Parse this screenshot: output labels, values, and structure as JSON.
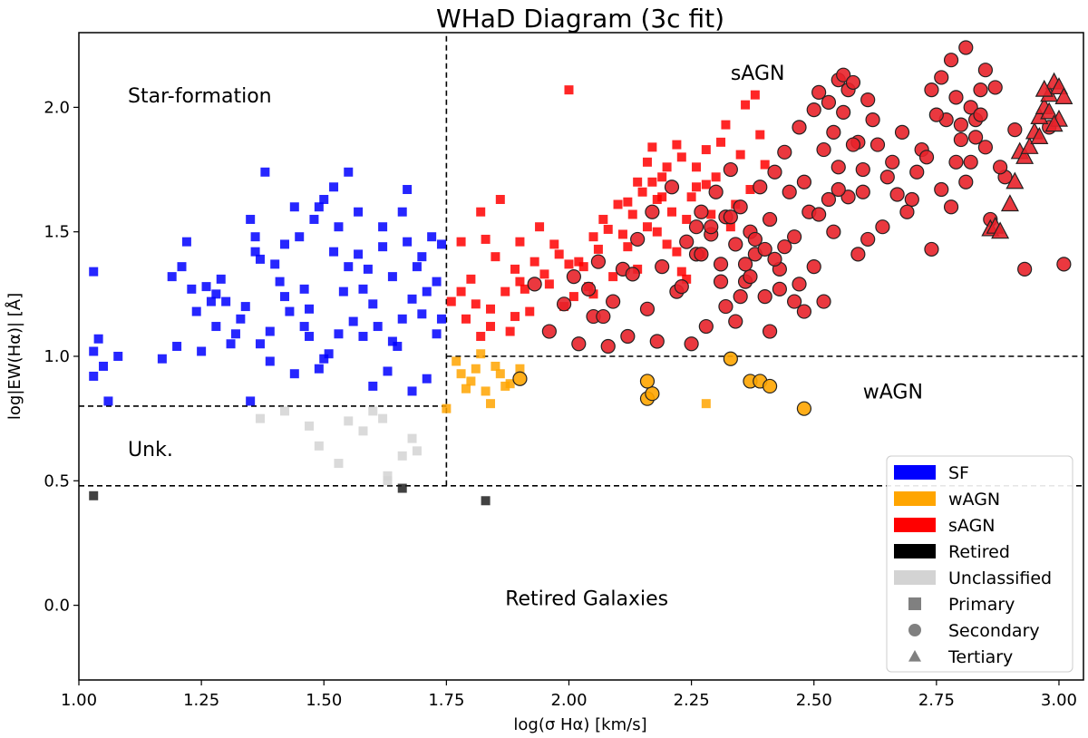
{
  "chart_data": {
    "type": "scatter",
    "title": "WHaD Diagram (3c fit)",
    "xlabel": "log(σ Hα) [km/s]",
    "ylabel": "log|EW(Hα)| [Å]",
    "xlim": [
      1.0,
      3.05
    ],
    "ylim": [
      -0.3,
      2.3
    ],
    "xticks": [
      "1.00",
      "1.25",
      "1.50",
      "1.75",
      "2.00",
      "2.25",
      "2.50",
      "2.75",
      "3.00"
    ],
    "yticks": [
      "0.0",
      "0.5",
      "1.0",
      "1.5",
      "2.0"
    ],
    "grid": false,
    "legend_position": "bottom-right",
    "dividers": [
      {
        "type": "vertical",
        "x": 1.75,
        "y_from": 0.48,
        "y_to": 2.3
      },
      {
        "type": "horizontal",
        "y": 1.0,
        "x_from": 1.75,
        "x_to": 3.05
      },
      {
        "type": "horizontal",
        "y": 0.8,
        "x_from": 1.0,
        "x_to": 1.75
      },
      {
        "type": "horizontal",
        "y": 0.48,
        "x_from": 1.0,
        "x_to": 3.05
      }
    ],
    "region_labels": [
      {
        "text": "Star-formation",
        "x": 1.1,
        "y": 2.02,
        "color": "#000000"
      },
      {
        "text": "sAGN",
        "x": 2.33,
        "y": 2.11,
        "color": "#000000"
      },
      {
        "text": "wAGN",
        "x": 2.6,
        "y": 0.83,
        "color": "#000000"
      },
      {
        "text": "Unk.",
        "x": 1.1,
        "y": 0.6,
        "color": "#000000"
      },
      {
        "text": "Retired Galaxies",
        "x": 1.87,
        "y": 0.0,
        "color": "#ff0000"
      }
    ],
    "legend": [
      {
        "label": "SF",
        "kind": "patch",
        "color": "#0000ff"
      },
      {
        "label": "wAGN",
        "kind": "patch",
        "color": "#ffa500"
      },
      {
        "label": "sAGN",
        "kind": "patch",
        "color": "#ff0000"
      },
      {
        "label": "Retired",
        "kind": "patch",
        "color": "#000000"
      },
      {
        "label": "Unclassified",
        "kind": "patch",
        "color": "#d3d3d3"
      },
      {
        "label": "Primary",
        "kind": "square",
        "color": "#808080"
      },
      {
        "label": "Secondary",
        "kind": "circle",
        "color": "#808080"
      },
      {
        "label": "Tertiary",
        "kind": "triangle",
        "color": "#808080"
      }
    ],
    "series": [
      {
        "class": "SF",
        "component": "Primary",
        "marker": "square",
        "color": "#0000ff",
        "x": [
          1.03,
          1.05,
          1.03,
          1.04,
          1.03,
          1.08,
          1.06,
          1.17,
          1.2,
          1.22,
          1.21,
          1.24,
          1.26,
          1.28,
          1.3,
          1.33,
          1.35,
          1.37,
          1.38,
          1.4,
          1.42,
          1.44,
          1.46,
          1.47,
          1.48,
          1.5,
          1.52,
          1.53,
          1.55,
          1.57,
          1.59,
          1.61,
          1.63,
          1.66,
          1.67,
          1.7,
          1.72,
          1.73,
          1.74,
          1.19,
          1.23,
          1.27,
          1.31,
          1.34,
          1.36,
          1.39,
          1.41,
          1.43,
          1.45,
          1.49,
          1.51,
          1.54,
          1.56,
          1.58,
          1.6,
          1.62,
          1.64,
          1.65,
          1.68,
          1.69,
          1.71,
          1.25,
          1.29,
          1.32,
          1.37,
          1.42,
          1.46,
          1.5,
          1.55,
          1.6,
          1.66,
          1.71,
          1.74,
          1.28,
          1.36,
          1.44,
          1.52,
          1.58,
          1.64,
          1.7,
          1.35,
          1.47,
          1.57,
          1.62,
          1.68,
          1.73,
          1.39,
          1.53,
          1.67,
          1.49
        ],
        "y": [
          0.92,
          0.96,
          1.02,
          1.07,
          1.34,
          1.0,
          0.82,
          0.99,
          1.04,
          1.46,
          1.36,
          1.18,
          1.28,
          1.12,
          1.22,
          1.15,
          0.82,
          1.05,
          1.74,
          1.37,
          1.45,
          1.6,
          1.27,
          1.08,
          1.55,
          1.63,
          1.42,
          1.52,
          1.74,
          1.58,
          1.35,
          1.12,
          0.94,
          1.58,
          1.67,
          1.4,
          1.48,
          1.09,
          1.15,
          1.32,
          1.27,
          1.22,
          1.05,
          1.2,
          1.42,
          1.1,
          1.3,
          1.18,
          1.48,
          0.95,
          1.01,
          1.26,
          1.14,
          1.08,
          1.21,
          1.44,
          1.32,
          1.04,
          1.23,
          1.36,
          0.91,
          1.02,
          1.31,
          1.09,
          1.39,
          1.24,
          1.12,
          0.99,
          1.36,
          0.88,
          1.15,
          1.26,
          1.45,
          1.25,
          1.48,
          0.93,
          1.68,
          1.27,
          1.06,
          1.17,
          1.55,
          1.19,
          1.41,
          1.52,
          0.86,
          1.3,
          0.98,
          1.09,
          1.46,
          1.6
        ]
      },
      {
        "class": "Unclassified",
        "component": "Primary",
        "marker": "square",
        "color": "#d3d3d3",
        "x": [
          1.37,
          1.42,
          1.49,
          1.53,
          1.55,
          1.58,
          1.62,
          1.63,
          1.66,
          1.68,
          1.69,
          1.6,
          1.47,
          1.63
        ],
        "y": [
          0.75,
          0.78,
          0.64,
          0.57,
          0.74,
          0.7,
          0.75,
          0.52,
          0.6,
          0.67,
          0.62,
          0.78,
          0.72,
          0.5
        ]
      },
      {
        "class": "Retired",
        "component": "Primary",
        "marker": "square",
        "color": "#202020",
        "x": [
          1.03,
          1.66,
          1.83
        ],
        "y": [
          0.44,
          0.47,
          0.42
        ]
      },
      {
        "class": "wAGN",
        "component": "Primary",
        "marker": "square",
        "color": "#ffa500",
        "x": [
          1.75,
          1.77,
          1.79,
          1.81,
          1.82,
          1.83,
          1.84,
          1.86,
          1.88,
          1.9,
          1.8,
          1.85,
          2.28,
          1.78,
          1.87
        ],
        "y": [
          0.79,
          0.98,
          0.87,
          0.95,
          1.01,
          0.86,
          0.81,
          0.93,
          0.89,
          0.95,
          0.9,
          0.96,
          0.81,
          0.93,
          0.88
        ]
      },
      {
        "class": "sAGN",
        "component": "Primary",
        "marker": "square",
        "color": "#ff0000",
        "x": [
          1.76,
          1.78,
          1.8,
          1.82,
          1.84,
          1.85,
          1.87,
          1.89,
          1.9,
          1.92,
          1.94,
          1.96,
          1.98,
          2.0,
          2.01,
          2.03,
          2.05,
          2.07,
          2.09,
          2.1,
          2.12,
          2.14,
          2.16,
          2.17,
          2.18,
          2.2,
          2.22,
          2.24,
          2.26,
          2.28,
          2.3,
          2.32,
          2.34,
          2.36,
          2.38,
          1.79,
          1.83,
          1.86,
          1.91,
          1.95,
          1.99,
          2.02,
          2.06,
          2.11,
          2.13,
          2.15,
          2.19,
          2.21,
          2.23,
          2.25,
          2.27,
          2.33,
          2.37,
          2.4,
          1.81,
          1.88,
          1.93,
          1.97,
          2.04,
          2.08,
          2.14,
          2.17,
          2.2,
          2.24,
          2.29,
          1.78,
          1.84,
          1.9,
          2.0,
          2.05,
          2.12,
          2.18,
          2.22,
          2.26,
          2.31,
          2.35,
          2.39,
          1.82,
          1.89,
          2.16,
          2.19,
          2.23,
          2.28
        ],
        "y": [
          1.22,
          1.46,
          1.31,
          1.58,
          1.12,
          1.4,
          1.26,
          1.35,
          1.46,
          1.18,
          1.52,
          1.29,
          1.41,
          2.07,
          1.24,
          1.36,
          1.48,
          1.55,
          1.32,
          1.61,
          1.44,
          1.7,
          1.52,
          1.84,
          1.63,
          1.76,
          1.85,
          1.55,
          1.68,
          1.83,
          1.72,
          1.93,
          1.61,
          2.01,
          2.05,
          1.15,
          1.47,
          1.63,
          1.27,
          1.33,
          1.2,
          1.38,
          1.43,
          1.49,
          1.57,
          1.66,
          1.72,
          1.58,
          1.8,
          1.64,
          1.41,
          1.52,
          1.67,
          1.77,
          1.21,
          1.1,
          1.38,
          1.45,
          1.28,
          1.51,
          1.35,
          1.7,
          1.45,
          1.31,
          1.57,
          1.26,
          1.19,
          1.3,
          1.37,
          1.25,
          1.62,
          1.5,
          1.42,
          1.76,
          1.86,
          1.81,
          1.89,
          1.08,
          1.16,
          1.78,
          1.64,
          1.34,
          1.69
        ]
      },
      {
        "class": "wAGN",
        "component": "Secondary",
        "marker": "circle",
        "color": "#ffa500",
        "x": [
          1.9,
          2.16,
          2.17,
          2.16,
          2.33,
          2.37,
          2.39,
          2.41,
          2.48
        ],
        "y": [
          0.91,
          0.83,
          0.85,
          0.9,
          0.99,
          0.9,
          0.9,
          0.88,
          0.79
        ]
      },
      {
        "class": "sAGN",
        "component": "Secondary",
        "marker": "circle",
        "color": "#e8222a",
        "x": [
          1.93,
          1.96,
          1.99,
          2.01,
          2.02,
          2.04,
          2.05,
          2.06,
          2.08,
          2.09,
          2.11,
          2.12,
          2.14,
          2.16,
          2.17,
          2.19,
          2.21,
          2.22,
          2.24,
          2.25,
          2.27,
          2.28,
          2.29,
          2.3,
          2.31,
          2.32,
          2.33,
          2.34,
          2.35,
          2.36,
          2.37,
          2.38,
          2.39,
          2.4,
          2.41,
          2.42,
          2.43,
          2.44,
          2.45,
          2.46,
          2.47,
          2.48,
          2.49,
          2.5,
          2.51,
          2.52,
          2.53,
          2.54,
          2.55,
          2.56,
          2.57,
          2.58,
          2.59,
          2.6,
          2.61,
          2.62,
          2.64,
          2.66,
          2.68,
          2.7,
          2.72,
          2.74,
          2.76,
          2.77,
          2.78,
          2.79,
          2.8,
          2.81,
          2.82,
          2.83,
          2.84,
          2.85,
          2.86,
          2.87,
          2.89,
          2.91,
          2.93,
          2.98,
          3.01,
          2.07,
          2.13,
          2.18,
          2.23,
          2.26,
          2.32,
          2.35,
          2.37,
          2.41,
          2.44,
          2.47,
          2.51,
          2.53,
          2.55,
          2.57,
          2.59,
          2.63,
          2.67,
          2.71,
          2.75,
          2.78,
          2.8,
          2.83,
          2.85,
          2.88,
          2.26,
          2.31,
          2.34,
          2.38,
          2.42,
          2.46,
          2.5,
          2.54,
          2.56,
          2.58,
          2.61,
          2.65,
          2.69,
          2.73,
          2.76,
          2.79,
          2.81,
          2.84,
          2.27,
          2.29,
          2.33,
          2.36,
          2.4,
          2.43,
          2.48,
          2.52,
          2.55,
          2.6,
          2.74,
          2.82
        ],
        "y": [
          1.29,
          1.1,
          1.21,
          1.32,
          1.05,
          1.27,
          1.16,
          1.38,
          1.04,
          1.22,
          1.35,
          1.08,
          1.47,
          1.19,
          1.58,
          1.36,
          1.68,
          1.26,
          1.46,
          1.05,
          1.58,
          1.12,
          1.49,
          1.66,
          1.37,
          1.2,
          1.75,
          1.45,
          1.6,
          1.3,
          1.5,
          1.41,
          1.68,
          1.24,
          1.55,
          1.74,
          1.35,
          1.82,
          1.66,
          1.48,
          1.92,
          1.7,
          1.58,
          1.99,
          2.06,
          1.83,
          2.02,
          1.9,
          2.11,
          2.13,
          2.07,
          2.1,
          1.86,
          1.66,
          2.03,
          1.95,
          1.52,
          1.78,
          1.9,
          1.63,
          1.83,
          2.07,
          2.12,
          1.95,
          2.19,
          2.04,
          1.87,
          2.24,
          2.0,
          1.95,
          2.07,
          1.84,
          1.55,
          2.08,
          1.72,
          1.91,
          1.35,
          1.92,
          1.37,
          1.16,
          1.33,
          1.06,
          1.28,
          1.41,
          1.56,
          1.24,
          1.32,
          1.1,
          1.44,
          1.29,
          1.57,
          1.63,
          1.76,
          1.64,
          1.41,
          1.85,
          1.65,
          1.74,
          1.97,
          1.6,
          1.93,
          1.88,
          2.15,
          1.76,
          1.52,
          1.3,
          1.14,
          1.47,
          1.39,
          1.22,
          1.36,
          1.5,
          1.98,
          1.85,
          1.47,
          1.72,
          1.58,
          1.8,
          1.67,
          1.78,
          1.7,
          1.97,
          1.41,
          1.52,
          1.56,
          1.37,
          1.43,
          1.27,
          1.18,
          1.22,
          1.67,
          1.75,
          1.43,
          1.78
        ]
      },
      {
        "class": "sAGN",
        "component": "Tertiary",
        "marker": "triangle",
        "color": "#e8222a",
        "x": [
          2.86,
          2.87,
          2.88,
          2.9,
          2.91,
          2.92,
          2.93,
          2.94,
          2.95,
          2.96,
          2.97,
          2.98,
          2.99,
          3.0,
          3.01,
          2.97,
          2.98,
          3.0,
          2.99,
          2.96
        ],
        "y": [
          1.51,
          1.52,
          1.5,
          1.61,
          1.7,
          1.82,
          1.8,
          1.84,
          1.9,
          1.96,
          2.0,
          2.05,
          2.1,
          2.08,
          2.04,
          2.07,
          1.98,
          1.95,
          1.93,
          1.88
        ]
      }
    ]
  }
}
